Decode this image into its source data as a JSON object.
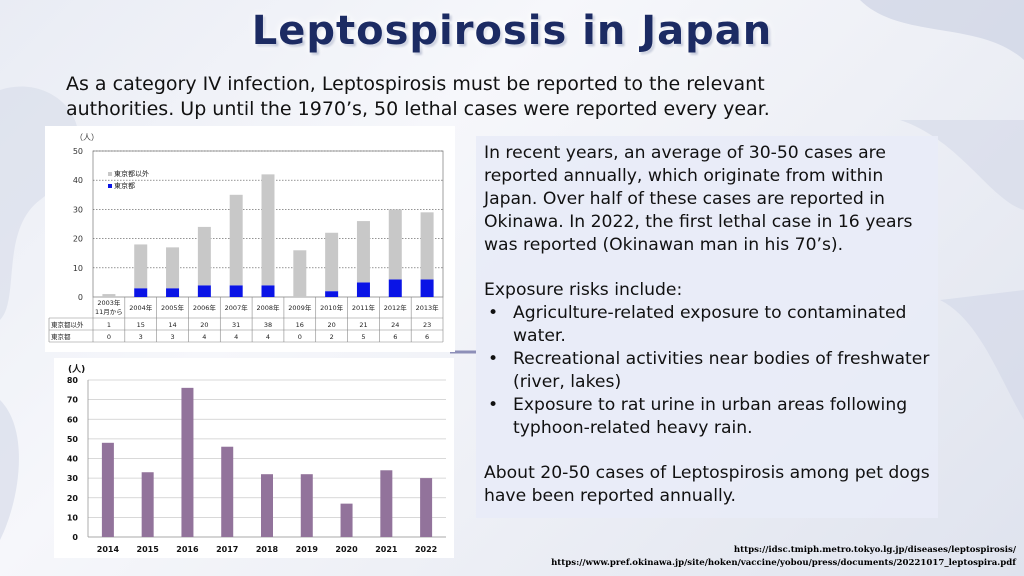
{
  "title": "Leptospirosis in Japan",
  "intro": "As a category IV infection, Leptospirosis must be reported to the relevant authorities. Up until the 1970’s, 50 lethal cases were reported every year.",
  "right_panel": {
    "para1": "In recent years, an average of 30-50 cases are reported annually, which originate from within Japan. Over half of these cases are reported in Okinawa. In 2022, the first lethal case in 16 years was reported (Okinawan man in his 70’s).",
    "risks_heading": "Exposure risks include:",
    "risks": [
      "Agriculture-related exposure to contaminated water.",
      "Recreational activities near bodies of freshwater (river, lakes)",
      "Exposure to rat urine in urban areas following typhoon-related heavy rain."
    ],
    "bullet_symbol": "•",
    "para2": "About 20-50 cases of Leptospirosis among pet dogs have been reported annually."
  },
  "references": [
    "https://idsc.tmiph.metro.tokyo.lg.jp/diseases/leptospirosis/",
    "https://www.pref.okinawa.jp/site/hoken/vaccine/yobou/press/documents/20221017_leptospira.pdf"
  ],
  "colors": {
    "title": "#1c2b63",
    "tokyo": "#0a14e6",
    "outside_tokyo": "#c8c8c8",
    "purple": "#92739b"
  },
  "chart_data": [
    {
      "type": "bar",
      "stacked": true,
      "unit_label": "（人）",
      "categories": [
        "2003年\n11月から",
        "2004年",
        "2005年",
        "2006年",
        "2007年",
        "2008年",
        "2009年",
        "2010年",
        "2011年",
        "2012年",
        "2013年"
      ],
      "series": [
        {
          "name": "東京都以外",
          "values": [
            1,
            15,
            14,
            20,
            31,
            38,
            16,
            20,
            21,
            24,
            23
          ]
        },
        {
          "name": "東京都",
          "values": [
            0,
            3,
            3,
            4,
            4,
            4,
            0,
            2,
            5,
            6,
            6
          ]
        }
      ],
      "legend": [
        "東京都以外",
        "東京都"
      ],
      "ylim": [
        0,
        50
      ],
      "yticks": [
        0,
        10,
        20,
        30,
        40,
        50
      ],
      "table_labels": [
        "東京都以外",
        "東京都"
      ]
    },
    {
      "type": "bar",
      "unit_label": "(人)",
      "categories": [
        "2014",
        "2015",
        "2016",
        "2017",
        "2018",
        "2019",
        "2020",
        "2021",
        "2022"
      ],
      "values": [
        48,
        33,
        76,
        46,
        32,
        32,
        17,
        34,
        30
      ],
      "ylim": [
        0,
        80
      ],
      "yticks": [
        0,
        10,
        20,
        30,
        40,
        50,
        60,
        70,
        80
      ]
    }
  ]
}
